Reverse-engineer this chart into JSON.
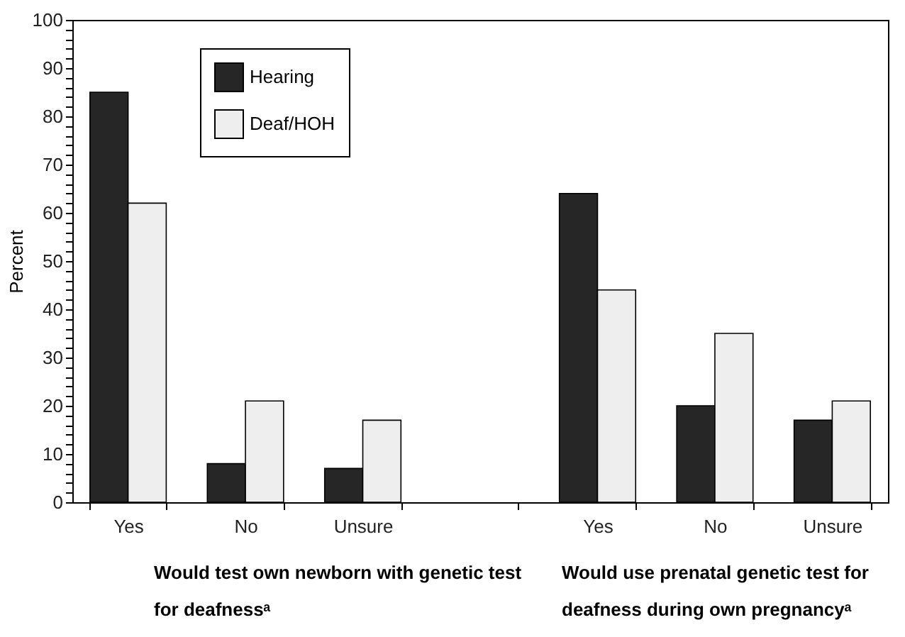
{
  "chart_data": {
    "type": "bar",
    "categories": [
      "Yes",
      "No",
      "Unsure",
      null,
      "Yes",
      "No",
      "Unsure"
    ],
    "series": [
      {
        "name": "Hearing",
        "color": "#262626",
        "values": [
          85,
          8,
          7,
          null,
          64,
          20,
          17
        ]
      },
      {
        "name": "Deaf/HOH",
        "color": "#eeeeee",
        "values": [
          62,
          21,
          17,
          null,
          44,
          35,
          21
        ]
      }
    ],
    "ylabel": "Percent",
    "ylim": [
      0,
      100
    ],
    "yticks": [
      0,
      {
        "value": 2,
        "label": null
      },
      {
        "value": 4,
        "label": null
      },
      {
        "value": 6,
        "label": null
      },
      {
        "value": 8,
        "label": null
      },
      10,
      {
        "value": 12,
        "label": null
      },
      {
        "value": 14,
        "label": null
      },
      {
        "value": 16,
        "label": null
      },
      {
        "value": 18,
        "label": null
      },
      20,
      {
        "value": 22,
        "label": null
      },
      {
        "value": 24,
        "label": null
      },
      {
        "value": 26,
        "label": null
      },
      {
        "value": 28,
        "label": null
      },
      30,
      {
        "value": 32,
        "label": null
      },
      {
        "value": 34,
        "label": null
      },
      {
        "value": 36,
        "label": null
      },
      {
        "value": 38,
        "label": null
      },
      40,
      {
        "value": 42,
        "label": null
      },
      {
        "value": 44,
        "label": null
      },
      {
        "value": 46,
        "label": null
      },
      {
        "value": 48,
        "label": null
      },
      50,
      {
        "value": 52,
        "label": null
      },
      {
        "value": 54,
        "label": null
      },
      {
        "value": 56,
        "label": null
      },
      {
        "value": 58,
        "label": null
      },
      60,
      {
        "value": 62,
        "label": null
      },
      {
        "value": 64,
        "label": null
      },
      {
        "value": 66,
        "label": null
      },
      {
        "value": 68,
        "label": null
      },
      70,
      {
        "value": 72,
        "label": null
      },
      {
        "value": 74,
        "label": null
      },
      {
        "value": 76,
        "label": null
      },
      {
        "value": 78,
        "label": null
      },
      80,
      {
        "value": 82,
        "label": null
      },
      {
        "value": 84,
        "label": null
      },
      {
        "value": 86,
        "label": null
      },
      {
        "value": 88,
        "label": null
      },
      90,
      {
        "value": 92,
        "label": null
      },
      {
        "value": 94,
        "label": null
      },
      {
        "value": 96,
        "label": null
      },
      {
        "value": 98,
        "label": null
      },
      100
    ],
    "annotations": [
      "Would test own newborn with genetic test\nfor deafnessᵃ",
      "Would use prenatal genetic test for\ndeafness during own pregnancyᵃ"
    ],
    "legend": "top left",
    "grid": false
  }
}
